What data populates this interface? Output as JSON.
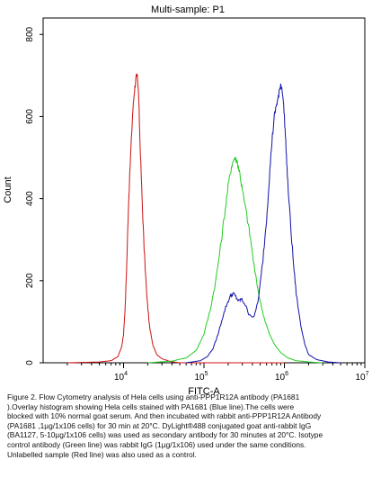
{
  "chart_data": {
    "type": "line",
    "title": "Multi-sample: P1",
    "xlabel": "FITC-A",
    "ylabel": "Count",
    "x_scale": "log",
    "xlim": [
      1000,
      10000000
    ],
    "ylim": [
      0,
      840
    ],
    "x_ticks": [
      {
        "value": 10000,
        "base": "10",
        "exp": "4"
      },
      {
        "value": 100000,
        "base": "10",
        "exp": "5"
      },
      {
        "value": 1000000,
        "base": "10",
        "exp": "6"
      },
      {
        "value": 10000000,
        "base": "10",
        "exp": "7"
      }
    ],
    "y_ticks": [
      0,
      200,
      400,
      600,
      800
    ],
    "grid": false,
    "series": [
      {
        "color": "#cc1111",
        "points": [
          [
            2000,
            0
          ],
          [
            5000,
            2
          ],
          [
            7000,
            5
          ],
          [
            8500,
            15
          ],
          [
            9500,
            40
          ],
          [
            10000,
            70
          ],
          [
            10500,
            140
          ],
          [
            11000,
            250
          ],
          [
            11500,
            380
          ],
          [
            12200,
            500
          ],
          [
            13000,
            610
          ],
          [
            13600,
            660
          ],
          [
            14200,
            690
          ],
          [
            14600,
            700
          ],
          [
            15000,
            690
          ],
          [
            15400,
            650
          ],
          [
            16000,
            540
          ],
          [
            17000,
            400
          ],
          [
            18000,
            280
          ],
          [
            19500,
            160
          ],
          [
            21000,
            90
          ],
          [
            23000,
            45
          ],
          [
            26000,
            20
          ],
          [
            30000,
            10
          ],
          [
            38000,
            3
          ],
          [
            50000,
            0
          ],
          [
            100000,
            0
          ],
          [
            1000000,
            0
          ]
        ]
      },
      {
        "color": "#22cc22",
        "points": [
          [
            20000,
            0
          ],
          [
            40000,
            4
          ],
          [
            60000,
            12
          ],
          [
            80000,
            30
          ],
          [
            100000,
            70
          ],
          [
            120000,
            130
          ],
          [
            140000,
            200
          ],
          [
            160000,
            280
          ],
          [
            180000,
            360
          ],
          [
            200000,
            430
          ],
          [
            220000,
            480
          ],
          [
            240000,
            500
          ],
          [
            260000,
            490
          ],
          [
            280000,
            460
          ],
          [
            300000,
            420
          ],
          [
            340000,
            360
          ],
          [
            380000,
            300
          ],
          [
            430000,
            220
          ],
          [
            500000,
            150
          ],
          [
            560000,
            110
          ],
          [
            650000,
            70
          ],
          [
            750000,
            45
          ],
          [
            900000,
            25
          ],
          [
            1100000,
            12
          ],
          [
            1400000,
            5
          ],
          [
            2000000,
            2
          ],
          [
            3000000,
            0
          ]
        ]
      },
      {
        "color": "#1111aa",
        "points": [
          [
            60000,
            0
          ],
          [
            90000,
            5
          ],
          [
            110000,
            15
          ],
          [
            130000,
            35
          ],
          [
            150000,
            70
          ],
          [
            170000,
            110
          ],
          [
            190000,
            140
          ],
          [
            210000,
            160
          ],
          [
            230000,
            170
          ],
          [
            250000,
            160
          ],
          [
            270000,
            150
          ],
          [
            290000,
            155
          ],
          [
            320000,
            145
          ],
          [
            360000,
            120
          ],
          [
            420000,
            110
          ],
          [
            480000,
            160
          ],
          [
            540000,
            250
          ],
          [
            600000,
            350
          ],
          [
            650000,
            450
          ],
          [
            700000,
            540
          ],
          [
            750000,
            600
          ],
          [
            800000,
            630
          ],
          [
            850000,
            650
          ],
          [
            900000,
            680
          ],
          [
            950000,
            660
          ],
          [
            1000000,
            600
          ],
          [
            1050000,
            520
          ],
          [
            1100000,
            440
          ],
          [
            1200000,
            330
          ],
          [
            1300000,
            240
          ],
          [
            1400000,
            170
          ],
          [
            1600000,
            90
          ],
          [
            1800000,
            45
          ],
          [
            2000000,
            20
          ],
          [
            2500000,
            8
          ],
          [
            3500000,
            2
          ],
          [
            5000000,
            0
          ]
        ]
      }
    ]
  },
  "caption": "Figure 2. Flow Cytometry analysis of Hela cells using anti-PPP1R12A antibody (PA1681\n).Overlay histogram showing Hela cells stained with PA1681 (Blue line).The cells were\nblocked with 10% normal goat serum. And then incubated with rabbit anti-PPP1R12A Antibody\n(PA1681 ,1µg/1x106 cells) for 30 min at 20°C. DyLight®488 conjugated goat anti-rabbit IgG\n(BA1127, 5-10µg/1x106 cells) was used as secondary antibody for 30 minutes at 20°C. Isotype\ncontrol antibody (Green line) was rabbit IgG (1µg/1x106) used under the same conditions.\nUnlabelled sample (Red line) was also used as a control."
}
